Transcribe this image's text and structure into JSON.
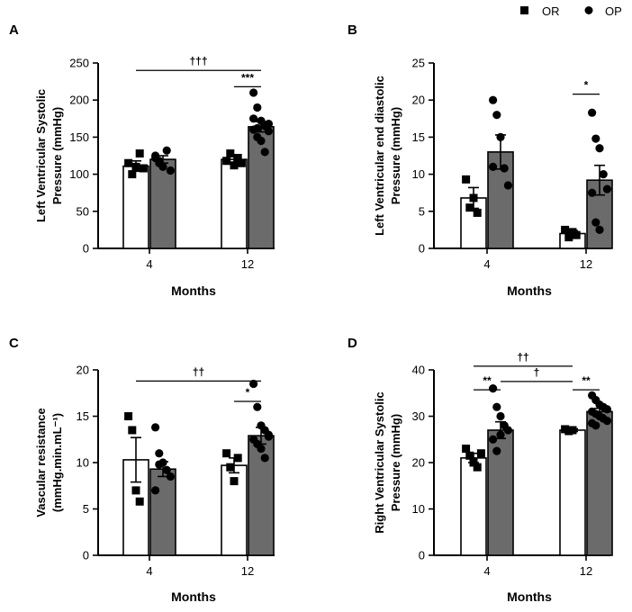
{
  "legend": {
    "items": [
      {
        "label": "OR",
        "marker": "square"
      },
      {
        "label": "OP",
        "marker": "circle"
      }
    ]
  },
  "colors": {
    "or_fill": "#ffffff",
    "op_fill": "#6b6b6b",
    "ink": "#000000"
  },
  "chart_data": [
    {
      "type": "bar",
      "panel": "A",
      "categories": [
        "4",
        "12"
      ],
      "xlabel": "Months",
      "ylabel": [
        "Left Ventricular Systolic",
        "Pressure (mmHg)"
      ],
      "ylim": [
        0,
        250
      ],
      "yticks": [
        0,
        50,
        100,
        150,
        200,
        250
      ],
      "series": [
        {
          "name": "OR",
          "values": [
            111,
            120
          ],
          "sem": [
            7,
            5
          ],
          "points": [
            [
              115,
              100,
              110,
              128,
              108
            ],
            [
              118,
              128,
              112,
              122,
              115
            ]
          ]
        },
        {
          "name": "OP",
          "values": [
            120,
            164
          ],
          "sem": [
            5,
            7
          ],
          "points": [
            [
              125,
              118,
              110,
              132,
              105,
              122,
              115
            ],
            [
              210,
              190,
              172,
              165,
              168,
              160,
              150,
              145,
              130,
              158,
              175,
              162
            ]
          ]
        }
      ],
      "annotations": [
        {
          "text": "†††",
          "from": [
            "OR",
            1
          ],
          "to": [
            "OP",
            2
          ],
          "y": 240
        },
        {
          "text": "***",
          "from": [
            "OR",
            2
          ],
          "to": [
            "OP",
            2
          ],
          "y": 218
        }
      ]
    },
    {
      "type": "bar",
      "panel": "B",
      "categories": [
        "4",
        "12"
      ],
      "xlabel": "Months",
      "ylabel": [
        "Left Ventricular end diastolic",
        "Pressure (mmHg)"
      ],
      "ylim": [
        0,
        25
      ],
      "yticks": [
        0,
        5,
        10,
        15,
        20,
        25
      ],
      "series": [
        {
          "name": "OR",
          "values": [
            6.8,
            2.0
          ],
          "sem": [
            1.4,
            0.4
          ],
          "points": [
            [
              9.3,
              5.5,
              6.8,
              4.8
            ],
            [
              2.5,
              1.5,
              2.2,
              1.8
            ]
          ]
        },
        {
          "name": "OP",
          "values": [
            13.0,
            9.2
          ],
          "sem": [
            2.3,
            2.0
          ],
          "points": [
            [
              20.0,
              18.0,
              15.0,
              10.8,
              8.5,
              11.0
            ],
            [
              18.3,
              14.8,
              13.5,
              10.0,
              8.0,
              7.5,
              3.5,
              2.5
            ]
          ]
        }
      ],
      "annotations": [
        {
          "text": "*",
          "from": [
            "OR",
            2
          ],
          "to": [
            "OP",
            2
          ],
          "y": 20.8
        }
      ]
    },
    {
      "type": "bar",
      "panel": "C",
      "categories": [
        "4",
        "12"
      ],
      "xlabel": "Months",
      "ylabel": [
        "Vascular resistance",
        "(mmHg.min.mL⁻¹)"
      ],
      "ylim": [
        0,
        20
      ],
      "yticks": [
        0,
        5,
        10,
        15,
        20
      ],
      "series": [
        {
          "name": "OR",
          "values": [
            10.3,
            9.7
          ],
          "sem": [
            2.4,
            0.8
          ],
          "points": [
            [
              15.0,
              13.5,
              7.0,
              5.8
            ],
            [
              11.0,
              9.5,
              8.0,
              10.5
            ]
          ]
        },
        {
          "name": "OP",
          "values": [
            9.3,
            12.9
          ],
          "sem": [
            0.8,
            0.9
          ],
          "points": [
            [
              13.8,
              11.0,
              10.0,
              9.2,
              8.5,
              7.0,
              9.8
            ],
            [
              18.5,
              16.0,
              14.0,
              13.5,
              13.0,
              12.5,
              12.0,
              11.5,
              10.5,
              12.8
            ]
          ]
        }
      ],
      "annotations": [
        {
          "text": "††",
          "from": [
            "OR",
            1
          ],
          "to": [
            "OP",
            2
          ],
          "y": 18.8
        },
        {
          "text": "*",
          "from": [
            "OR",
            2
          ],
          "to": [
            "OP",
            2
          ],
          "y": 16.6
        }
      ]
    },
    {
      "type": "bar",
      "panel": "D",
      "categories": [
        "4",
        "12"
      ],
      "xlabel": "Months",
      "ylabel": [
        "Right Ventricular Systolic",
        "Pressure (mmHg)"
      ],
      "ylim": [
        0,
        40
      ],
      "yticks": [
        0,
        10,
        20,
        30,
        40
      ],
      "series": [
        {
          "name": "OR",
          "values": [
            21.0,
            27.0
          ],
          "sem": [
            1.0,
            0.3
          ],
          "points": [
            [
              23.0,
              21.5,
              20.0,
              19.0,
              22.0
            ],
            [
              27.2,
              26.8,
              27.0
            ]
          ]
        },
        {
          "name": "OP",
          "values": [
            27.0,
            31.0
          ],
          "sem": [
            1.8,
            0.7
          ],
          "points": [
            [
              36.0,
              32.0,
              30.0,
              28.0,
              27.0,
              25.0,
              22.5,
              26.0
            ],
            [
              34.5,
              33.5,
              32.5,
              32.0,
              31.5,
              31.0,
              30.5,
              30.0,
              29.5,
              29.0,
              28.5,
              28.0
            ]
          ]
        }
      ],
      "annotations": [
        {
          "text": "††",
          "from": [
            "OR",
            1
          ],
          "to": [
            "OR",
            2
          ],
          "y": 40.8
        },
        {
          "text": "†",
          "from": [
            "OR",
            1
          ],
          "to": [
            "OR",
            2
          ],
          "y": 37.5,
          "fromSide": "OP"
        },
        {
          "text": "**",
          "from": [
            "OR",
            1
          ],
          "to": [
            "OP",
            1
          ],
          "y": 35.7
        },
        {
          "text": "**",
          "from": [
            "OR",
            2
          ],
          "to": [
            "OP",
            2
          ],
          "y": 35.7
        }
      ]
    }
  ]
}
